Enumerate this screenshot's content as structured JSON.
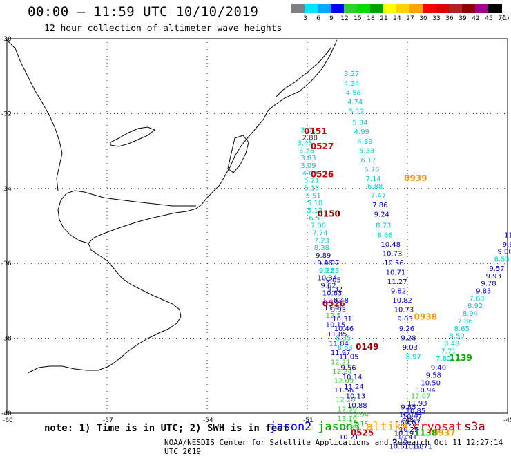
{
  "header": {
    "title": "00:00 – 11:59 UTC 10/10/2019",
    "subtitle": "12 hour collection of altimeter wave heights"
  },
  "color_scale": {
    "labels": [
      "3",
      "6",
      "9",
      "12",
      "15",
      "18",
      "21",
      "24",
      "27",
      "30",
      "33",
      "36",
      "39",
      "42",
      "45",
      "70"
    ],
    "colors": [
      "#7f7f7f",
      "#00e5ff",
      "#00aaff",
      "#0000ff",
      "#32cd32",
      "#00dd00",
      "#00a000",
      "#ffff00",
      "#ffd200",
      "#ffa500",
      "#ff0000",
      "#dd0000",
      "#b22222",
      "#8b0000",
      "#a0008b",
      "#000000"
    ],
    "unit": "(ft)"
  },
  "axes": {
    "lat_labels": [
      {
        "lat": -30,
        "text": "-30"
      },
      {
        "lat": -32,
        "text": "-32"
      },
      {
        "lat": -34,
        "text": "-34"
      },
      {
        "lat": -36,
        "text": "-36"
      },
      {
        "lat": -38,
        "text": "-38"
      },
      {
        "lat": -40,
        "text": "-40"
      }
    ],
    "lon_labels": [
      {
        "lon": -60,
        "text": "-60"
      },
      {
        "lon": -57,
        "text": "-57"
      },
      {
        "lon": -54,
        "text": "-54"
      },
      {
        "lon": -51,
        "text": "-51"
      },
      {
        "lon": -48,
        "text": "-48"
      },
      {
        "lon": -45,
        "text": "-45"
      }
    ]
  },
  "observations": [
    {
      "lon": -49.9,
      "lat": -31.0,
      "text": "3.27",
      "color": "#00cccc"
    },
    {
      "lon": -49.9,
      "lat": -31.25,
      "text": "4.34",
      "color": "#00cccc"
    },
    {
      "lon": -49.85,
      "lat": -31.5,
      "text": "4.58",
      "color": "#00cccc"
    },
    {
      "lon": -49.8,
      "lat": -31.75,
      "text": "4.74",
      "color": "#00cccc"
    },
    {
      "lon": -49.75,
      "lat": -32.0,
      "text": "5.12",
      "color": "#00cccc"
    },
    {
      "lon": -49.65,
      "lat": -32.3,
      "text": "5.34",
      "color": "#00cccc"
    },
    {
      "lon": -49.6,
      "lat": -32.55,
      "text": "4.99",
      "color": "#00cccc"
    },
    {
      "lon": -49.5,
      "lat": -32.8,
      "text": "4.89",
      "color": "#00cccc"
    },
    {
      "lon": -49.45,
      "lat": -33.05,
      "text": "5.33",
      "color": "#00cccc"
    },
    {
      "lon": -49.4,
      "lat": -33.3,
      "text": "6.17",
      "color": "#00cccc"
    },
    {
      "lon": -49.3,
      "lat": -33.55,
      "text": "6.76",
      "color": "#00cccc"
    },
    {
      "lon": -49.25,
      "lat": -33.8,
      "text": "7.14",
      "color": "#00cccc"
    },
    {
      "lon": -49.2,
      "lat": -34.0,
      "text": "6.88",
      "color": "#00cccc"
    },
    {
      "lon": -49.1,
      "lat": -34.25,
      "text": "7.47",
      "color": "#00cccc"
    },
    {
      "lon": -49.05,
      "lat": -34.5,
      "text": "7.86",
      "color": "#0000cc"
    },
    {
      "lon": -49.0,
      "lat": -34.75,
      "text": "9.24",
      "color": "#0000cc"
    },
    {
      "lon": -48.95,
      "lat": -35.05,
      "text": "8.73",
      "color": "#00cccc"
    },
    {
      "lon": -48.9,
      "lat": -35.3,
      "text": "8.66",
      "color": "#00cccc"
    },
    {
      "lon": -48.8,
      "lat": -35.55,
      "text": "10.48",
      "color": "#0000cc"
    },
    {
      "lon": -48.75,
      "lat": -35.8,
      "text": "10.73",
      "color": "#0000cc"
    },
    {
      "lon": -48.7,
      "lat": -36.05,
      "text": "10.56",
      "color": "#0000cc"
    },
    {
      "lon": -48.65,
      "lat": -36.3,
      "text": "10.71",
      "color": "#0000cc"
    },
    {
      "lon": -48.6,
      "lat": -36.55,
      "text": "11.27",
      "color": "#0000cc"
    },
    {
      "lon": -48.5,
      "lat": -36.8,
      "text": "9.82",
      "color": "#0000cc"
    },
    {
      "lon": -48.45,
      "lat": -37.05,
      "text": "10.82",
      "color": "#0000cc"
    },
    {
      "lon": -48.4,
      "lat": -37.3,
      "text": "10.73",
      "color": "#0000cc"
    },
    {
      "lon": -48.3,
      "lat": -37.55,
      "text": "9.03",
      "color": "#0000cc"
    },
    {
      "lon": -48.25,
      "lat": -37.8,
      "text": "9.26",
      "color": "#0000cc"
    },
    {
      "lon": -48.2,
      "lat": -38.05,
      "text": "9.28",
      "color": "#0000cc"
    },
    {
      "lon": -48.15,
      "lat": -38.3,
      "text": "9.03",
      "color": "#0000cc"
    },
    {
      "lon": -48.05,
      "lat": -38.55,
      "text": "8.97",
      "color": "#00cccc"
    },
    {
      "lon": -48.05,
      "lat": -38.05,
      "text": "",
      "color": "#0000cc"
    },
    {
      "lon": -51.2,
      "lat": -32.5,
      "text": "3.01",
      "color": "#00cccc"
    },
    {
      "lon": -51.15,
      "lat": -32.7,
      "text": "2.88",
      "color": "#333333"
    },
    {
      "lon": -51.3,
      "lat": -32.85,
      "text": "3.45",
      "color": "#00cccc"
    },
    {
      "lon": -51.25,
      "lat": -33.05,
      "text": "3.26",
      "color": "#00cccc"
    },
    {
      "lon": -51.2,
      "lat": -33.25,
      "text": "3.83",
      "color": "#00cccc"
    },
    {
      "lon": -51.2,
      "lat": -33.45,
      "text": "3.09",
      "color": "#00cccc"
    },
    {
      "lon": -51.15,
      "lat": -33.65,
      "text": "4.09",
      "color": "#00cccc"
    },
    {
      "lon": -51.1,
      "lat": -33.85,
      "text": "5.21",
      "color": "#00cccc"
    },
    {
      "lon": -51.1,
      "lat": -34.05,
      "text": "5.13",
      "color": "#00cccc"
    },
    {
      "lon": -51.05,
      "lat": -34.25,
      "text": "5.51",
      "color": "#00cccc"
    },
    {
      "lon": -51.0,
      "lat": -34.45,
      "text": "5.10",
      "color": "#00cccc"
    },
    {
      "lon": -51.0,
      "lat": -34.65,
      "text": "5.12",
      "color": "#00cccc"
    },
    {
      "lon": -50.95,
      "lat": -34.85,
      "text": "6.51",
      "color": "#00cccc"
    },
    {
      "lon": -50.9,
      "lat": -35.05,
      "text": "7.00",
      "color": "#00cccc"
    },
    {
      "lon": -50.85,
      "lat": -35.25,
      "text": "7.74",
      "color": "#00cccc"
    },
    {
      "lon": -50.8,
      "lat": -35.45,
      "text": "7.23",
      "color": "#00cccc"
    },
    {
      "lon": -50.8,
      "lat": -35.65,
      "text": "8.38",
      "color": "#00cccc"
    },
    {
      "lon": -50.75,
      "lat": -35.85,
      "text": "9.89",
      "color": "#0000cc"
    },
    {
      "lon": -50.7,
      "lat": -36.05,
      "text": "9.46",
      "color": "#0000cc"
    },
    {
      "lon": -50.65,
      "lat": -36.25,
      "text": "9.32",
      "color": "#00cccc"
    },
    {
      "lon": -50.7,
      "lat": -36.45,
      "text": "10.34",
      "color": "#0000cc"
    },
    {
      "lon": -50.6,
      "lat": -36.65,
      "text": "9.62",
      "color": "#0000cc"
    },
    {
      "lon": -50.55,
      "lat": -36.85,
      "text": "10.63",
      "color": "#0000cc"
    },
    {
      "lon": -50.55,
      "lat": -37.05,
      "text": "11.61",
      "color": "#0000cc"
    },
    {
      "lon": -50.5,
      "lat": -37.25,
      "text": "11.46",
      "color": "#0000cc"
    },
    {
      "lon": -50.45,
      "lat": -37.45,
      "text": "12.5",
      "color": "#33cc33"
    },
    {
      "lon": -50.45,
      "lat": -37.7,
      "text": "10.15",
      "color": "#0000cc"
    },
    {
      "lon": -50.4,
      "lat": -37.95,
      "text": "11.85",
      "color": "#0000cc"
    },
    {
      "lon": -50.35,
      "lat": -38.2,
      "text": "11.84",
      "color": "#0000cc"
    },
    {
      "lon": -50.3,
      "lat": -38.45,
      "text": "11.97",
      "color": "#0000cc"
    },
    {
      "lon": -50.3,
      "lat": -38.7,
      "text": "12.21",
      "color": "#33cc33"
    },
    {
      "lon": -50.25,
      "lat": -38.95,
      "text": "12.24",
      "color": "#33cc33"
    },
    {
      "lon": -50.2,
      "lat": -39.2,
      "text": "12.09",
      "color": "#33cc33"
    },
    {
      "lon": -50.2,
      "lat": -39.45,
      "text": "11.56",
      "color": "#0000cc"
    },
    {
      "lon": -50.15,
      "lat": -39.7,
      "text": "12.28",
      "color": "#33cc33"
    },
    {
      "lon": -50.1,
      "lat": -39.95,
      "text": "12.30",
      "color": "#33cc33"
    },
    {
      "lon": -50.1,
      "lat": -40.2,
      "text": "13.10",
      "color": "#33cc33"
    },
    {
      "lon": -50.05,
      "lat": -40.45,
      "text": "12.85",
      "color": "#33cc33"
    },
    {
      "lon": -50.05,
      "lat": -40.7,
      "text": "10.21",
      "color": "#0000cc"
    },
    {
      "lon": -50.5,
      "lat": -36.05,
      "text": "9.97",
      "color": "#0000cc"
    },
    {
      "lon": -50.5,
      "lat": -36.25,
      "text": "9.53",
      "color": "#00cccc"
    },
    {
      "lon": -50.45,
      "lat": -36.5,
      "text": "9.05",
      "color": "#0000cc"
    },
    {
      "lon": -50.4,
      "lat": -36.75,
      "text": "9.32",
      "color": "#0000cc"
    },
    {
      "lon": -50.35,
      "lat": -37.05,
      "text": "10.48",
      "color": "#0000cc"
    },
    {
      "lon": -50.3,
      "lat": -37.3,
      "text": "9.93",
      "color": "#0000cc"
    },
    {
      "lon": -50.25,
      "lat": -37.55,
      "text": "10.31",
      "color": "#0000cc"
    },
    {
      "lon": -50.2,
      "lat": -37.8,
      "text": "10.46",
      "color": "#0000cc"
    },
    {
      "lon": -50.15,
      "lat": -38.05,
      "text": "8.35",
      "color": "#00cccc"
    },
    {
      "lon": -50.1,
      "lat": -38.3,
      "text": "8.63",
      "color": "#00cccc"
    },
    {
      "lon": -50.05,
      "lat": -38.55,
      "text": "11.05",
      "color": "#0000cc"
    },
    {
      "lon": -50.0,
      "lat": -38.85,
      "text": "9.56",
      "color": "#0000cc"
    },
    {
      "lon": -49.95,
      "lat": -39.1,
      "text": "10.14",
      "color": "#0000cc"
    },
    {
      "lon": -49.9,
      "lat": -39.35,
      "text": "11.24",
      "color": "#0000cc"
    },
    {
      "lon": -49.85,
      "lat": -39.6,
      "text": "10.13",
      "color": "#0000cc"
    },
    {
      "lon": -49.8,
      "lat": -39.85,
      "text": "10.88",
      "color": "#0000cc"
    },
    {
      "lon": -49.75,
      "lat": -40.1,
      "text": "12.94",
      "color": "#33cc33"
    },
    {
      "lon": -49.75,
      "lat": -40.35,
      "text": "12.15",
      "color": "#33cc33"
    },
    {
      "lon": -45.1,
      "lat": -35.3,
      "text": "11.",
      "color": "#0000cc"
    },
    {
      "lon": -45.15,
      "lat": -35.55,
      "text": "9.6",
      "color": "#0000cc"
    },
    {
      "lon": -45.3,
      "lat": -35.75,
      "text": "9.00",
      "color": "#0000cc"
    },
    {
      "lon": -45.4,
      "lat": -35.95,
      "text": "8.53",
      "color": "#00cccc"
    },
    {
      "lon": -45.55,
      "lat": -36.2,
      "text": "9.57",
      "color": "#0000cc"
    },
    {
      "lon": -45.65,
      "lat": -36.4,
      "text": "9.93",
      "color": "#0000cc"
    },
    {
      "lon": -45.8,
      "lat": -36.6,
      "text": "9.78",
      "color": "#0000cc"
    },
    {
      "lon": -45.95,
      "lat": -36.8,
      "text": "9.85",
      "color": "#0000cc"
    },
    {
      "lon": -46.15,
      "lat": -37.0,
      "text": "7.63",
      "color": "#00cccc"
    },
    {
      "lon": -46.2,
      "lat": -37.2,
      "text": "8.92",
      "color": "#00cccc"
    },
    {
      "lon": -46.35,
      "lat": -37.4,
      "text": "8.94",
      "color": "#00cccc"
    },
    {
      "lon": -46.5,
      "lat": -37.6,
      "text": "7.86",
      "color": "#00cccc"
    },
    {
      "lon": -46.6,
      "lat": -37.8,
      "text": "8.65",
      "color": "#00cccc"
    },
    {
      "lon": -46.75,
      "lat": -38.0,
      "text": "8.59",
      "color": "#00cccc"
    },
    {
      "lon": -46.9,
      "lat": -38.2,
      "text": "8.48",
      "color": "#00cccc"
    },
    {
      "lon": -47.0,
      "lat": -38.4,
      "text": "7.71",
      "color": "#00cccc"
    },
    {
      "lon": -47.15,
      "lat": -38.6,
      "text": "7.82",
      "color": "#00cccc"
    },
    {
      "lon": -47.3,
      "lat": -38.85,
      "text": "9.40",
      "color": "#0000cc"
    },
    {
      "lon": -47.45,
      "lat": -39.05,
      "text": "9.58",
      "color": "#0000cc"
    },
    {
      "lon": -47.6,
      "lat": -39.25,
      "text": "10.50",
      "color": "#0000cc"
    },
    {
      "lon": -47.75,
      "lat": -39.45,
      "text": "10.94",
      "color": "#0000cc"
    },
    {
      "lon": -47.9,
      "lat": -39.6,
      "text": "12.07",
      "color": "#33cc33"
    },
    {
      "lon": -48.0,
      "lat": -39.8,
      "text": "11.93",
      "color": "#0000cc"
    },
    {
      "lon": -48.05,
      "lat": -40.0,
      "text": "10.85",
      "color": "#0000cc"
    },
    {
      "lon": -48.15,
      "lat": -40.15,
      "text": "10.47",
      "color": "#0000cc"
    },
    {
      "lon": -48.2,
      "lat": -40.3,
      "text": "10.67",
      "color": "#0000cc"
    },
    {
      "lon": -48.25,
      "lat": -40.5,
      "text": "10.25",
      "color": "#0000cc"
    },
    {
      "lon": -48.3,
      "lat": -40.7,
      "text": "10.41",
      "color": "#0000cc"
    },
    {
      "lon": -48.2,
      "lat": -39.9,
      "text": "9.85",
      "color": "#0000cc"
    },
    {
      "lon": -48.25,
      "lat": -40.1,
      "text": "10.15",
      "color": "#0000cc"
    },
    {
      "lon": -48.35,
      "lat": -40.35,
      "text": "10.57",
      "color": "#0000cc"
    },
    {
      "lon": -48.4,
      "lat": -40.6,
      "text": "10.19",
      "color": "#0000cc"
    },
    {
      "lon": -48.45,
      "lat": -40.8,
      "text": "9.15",
      "color": "#0000cc"
    },
    {
      "lon": -48.55,
      "lat": -40.95,
      "text": "10.61",
      "color": "#0000cc"
    },
    {
      "lon": -48.1,
      "lat": -40.95,
      "text": "10.63",
      "color": "#0000cc"
    },
    {
      "lon": -47.85,
      "lat": -40.95,
      "text": "10.71",
      "color": "#0000cc"
    }
  ],
  "pass_times": [
    {
      "lon": -51.1,
      "lat": -32.55,
      "text": "0151",
      "color": "#cc0000"
    },
    {
      "lon": -50.9,
      "lat": -32.95,
      "text": "0527",
      "color": "#cc0000"
    },
    {
      "lon": -50.9,
      "lat": -33.7,
      "text": "0526",
      "color": "#cc0000"
    },
    {
      "lon": -50.7,
      "lat": -34.75,
      "text": "0150",
      "color": "#880000"
    },
    {
      "lon": -50.55,
      "lat": -37.15,
      "text": "0526",
      "color": "#cc0000"
    },
    {
      "lon": -49.55,
      "lat": -38.3,
      "text": "0149",
      "color": "#880000"
    },
    {
      "lon": -49.7,
      "lat": -40.6,
      "text": "0525",
      "color": "#cc0000"
    },
    {
      "lon": -48.1,
      "lat": -33.8,
      "text": "0939",
      "color": "#ff9900"
    },
    {
      "lon": -47.8,
      "lat": -37.5,
      "text": "0938",
      "color": "#ff9900"
    },
    {
      "lon": -47.25,
      "lat": -40.6,
      "text": "0937",
      "color": "#ff9900"
    },
    {
      "lon": -46.75,
      "lat": -38.6,
      "text": "1139",
      "color": "#00aa00"
    },
    {
      "lon": -47.8,
      "lat": -40.6,
      "text": "1138",
      "color": "#00aa00"
    }
  ],
  "footer": {
    "note": "note: 1) Time is in UTC; 2) SWH is in feet",
    "legend": [
      {
        "text": "jason2",
        "color": "#0000ff"
      },
      {
        "text": "jason3",
        "color": "#00aa00"
      },
      {
        "text": "altika",
        "color": "#ffa500"
      },
      {
        "text": "cryosat",
        "color": "#ff0000"
      },
      {
        "text": "s3a",
        "color": "#8b0000"
      }
    ],
    "credit": "NOAA/NESDIS Center for Satellite Applications and Research   Oct 11 12:27:14 UTC 2019"
  }
}
